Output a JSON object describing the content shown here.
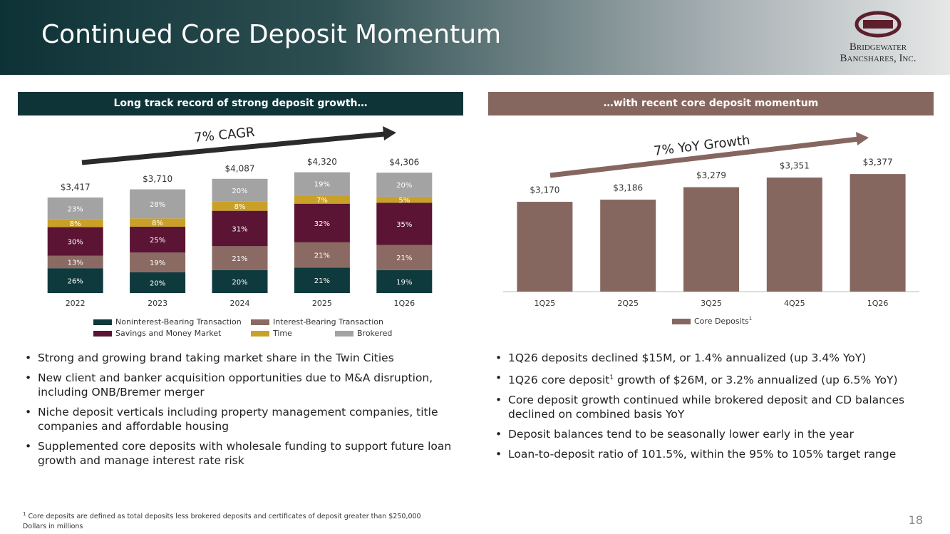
{
  "header": {
    "title": "Continued Core Deposit Momentum",
    "logo_line1": "Bridgewater",
    "logo_line2": "Bancshares, Inc."
  },
  "left_panel": {
    "heading": "Long track record of strong deposit growth…",
    "bullets": [
      "Strong and growing brand taking market share in the Twin Cities",
      "New client and banker acquisition opportunities due to M&A disruption, including ONB/Bremer merger",
      "Niche deposit verticals including property management companies, title companies and affordable housing",
      "Supplemented core deposits with wholesale funding to support future loan growth and manage interest rate risk"
    ]
  },
  "right_panel": {
    "heading": "…with recent core deposit momentum",
    "bullets": [
      {
        "text": "1Q26 deposits declined $15M, or 1.4% annualized (up 3.4% YoY)"
      },
      {
        "text": "1Q26 core deposit",
        "sup": "1",
        "rest": " growth of $26M, or 3.2% annualized (up 6.5% YoY)"
      },
      {
        "text": "Core deposit growth continued while brokered deposit and CD balances declined on combined basis YoY"
      },
      {
        "text": "Deposit balances tend to be seasonally lower early in the year"
      },
      {
        "text": "Loan-to-deposit ratio of 101.5%, within the 95% to 105% target range"
      }
    ]
  },
  "chart_data": [
    {
      "type": "stacked_bar",
      "annotation": "7% CAGR",
      "categories": [
        "2022",
        "2023",
        "2024",
        "2025",
        "1Q26"
      ],
      "series": [
        {
          "name": "Noninterest-Bearing Transaction",
          "color": "#0f3a3d",
          "values": [
            26,
            20,
            20,
            21,
            19
          ],
          "value_labels": [
            "26%",
            "20%",
            "20%",
            "21%",
            "19%"
          ]
        },
        {
          "name": "Interest-Bearing Transaction",
          "color": "#8a6a62",
          "values": [
            13,
            19,
            21,
            21,
            21
          ],
          "value_labels": [
            "13%",
            "19%",
            "21%",
            "21%",
            "21%"
          ]
        },
        {
          "name": "Savings and Money Market",
          "color": "#5b1433",
          "values": [
            30,
            25,
            31,
            32,
            35
          ],
          "value_labels": [
            "30%",
            "25%",
            "31%",
            "32%",
            "35%"
          ]
        },
        {
          "name": "Time",
          "color": "#c9a128",
          "values": [
            8,
            8,
            8,
            7,
            5
          ],
          "value_labels": [
            "8%",
            "8%",
            "8%",
            "7%",
            "5%"
          ]
        },
        {
          "name": "Brokered",
          "color": "#a3a3a3",
          "values": [
            23,
            28,
            20,
            19,
            20
          ],
          "value_labels": [
            "23%",
            "28%",
            "20%",
            "19%",
            "20%"
          ]
        }
      ],
      "totals": {
        "values": [
          3417,
          3710,
          4087,
          4320,
          4306
        ],
        "value_labels": [
          "$3,417",
          "$3,710",
          "$4,087",
          "$4,320",
          "$4,306"
        ]
      },
      "ylim": [
        0,
        5000
      ]
    },
    {
      "type": "bar",
      "annotation": "7% YoY Growth",
      "categories": [
        "1Q25",
        "2Q25",
        "3Q25",
        "4Q25",
        "1Q26"
      ],
      "series": [
        {
          "name": "Core Deposits",
          "name_sup": "1",
          "color": "#86675f",
          "values": [
            3170,
            3186,
            3279,
            3351,
            3377
          ],
          "value_labels": [
            "$3,170",
            "$3,186",
            "$3,279",
            "$3,351",
            "$3,377"
          ]
        }
      ],
      "ylim": [
        2500,
        3500
      ]
    }
  ],
  "footnote": {
    "marker": "1",
    "text": "Core deposits are defined as total deposits less brokered deposits and certificates of deposit greater than $250,000",
    "note": "Dollars in millions"
  },
  "page_number": "18"
}
